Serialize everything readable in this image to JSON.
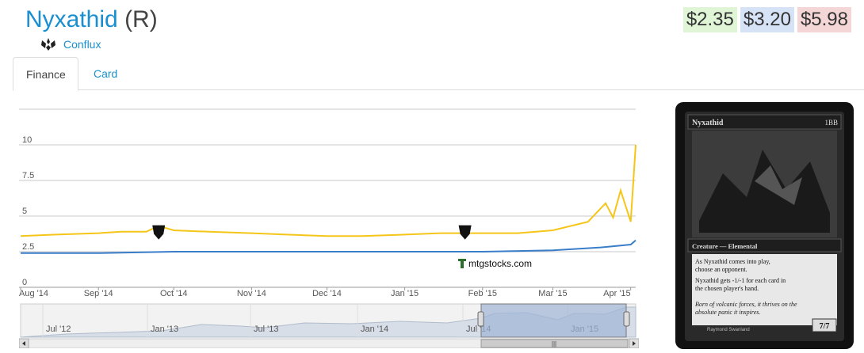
{
  "header": {
    "card_name": "Nyxathid",
    "rarity": "(R)",
    "set_name": "Conflux",
    "set_icon": "conflux-set-icon"
  },
  "prices": {
    "low": "$2.35",
    "mid": "$3.20",
    "high": "$5.98",
    "colors": {
      "low": "#dff5d6",
      "mid": "#d6e2f5",
      "high": "#f5d6d6"
    }
  },
  "tabs": [
    {
      "label": "Finance",
      "active": true
    },
    {
      "label": "Card",
      "active": false
    }
  ],
  "chart_data": {
    "type": "line",
    "x_tick_labels": [
      "Aug '14",
      "Sep '14",
      "Oct '14",
      "Nov '14",
      "Dec '14",
      "Jan '15",
      "Feb '15",
      "Mar '15",
      "Apr '15"
    ],
    "y_tick_labels": [
      "0",
      "2.5",
      "5",
      "7.5",
      "10"
    ],
    "ylim": [
      0,
      12.5
    ],
    "grid": true,
    "series": [
      {
        "color": "#f5c518",
        "x": [
          "2014-08-01",
          "2014-08-15",
          "2014-09-01",
          "2014-09-10",
          "2014-09-20",
          "2014-09-25",
          "2014-10-01",
          "2014-10-15",
          "2014-11-01",
          "2014-11-15",
          "2014-12-01",
          "2014-12-15",
          "2015-01-01",
          "2015-01-15",
          "2015-02-01",
          "2015-02-15",
          "2015-03-01",
          "2015-03-15",
          "2015-03-22",
          "2015-03-25",
          "2015-03-28",
          "2015-04-01",
          "2015-04-03"
        ],
        "values": [
          3.6,
          3.7,
          3.8,
          3.9,
          3.9,
          4.3,
          4.0,
          3.9,
          3.8,
          3.7,
          3.6,
          3.6,
          3.7,
          3.8,
          3.8,
          3.8,
          4.0,
          4.6,
          5.9,
          4.9,
          6.8,
          4.6,
          10.0
        ]
      },
      {
        "color": "#3a7dc9",
        "x": [
          "2014-08-01",
          "2014-09-01",
          "2014-10-01",
          "2014-11-01",
          "2014-12-01",
          "2015-01-01",
          "2015-02-01",
          "2015-03-01",
          "2015-03-20",
          "2015-04-01",
          "2015-04-03"
        ],
        "values": [
          2.4,
          2.4,
          2.5,
          2.5,
          2.5,
          2.5,
          2.5,
          2.6,
          2.8,
          3.0,
          3.3
        ]
      }
    ],
    "markers": [
      {
        "x": "2014-09-25",
        "icon": "khans-of-tarkir-set-icon"
      },
      {
        "x": "2015-01-25",
        "icon": "fate-reforged-set-icon"
      }
    ],
    "watermark": "mtgstocks.com",
    "navigator": {
      "tick_labels": [
        "Jul '12",
        "Jan '13",
        "Jul '13",
        "Jan '14",
        "Jul '14",
        "Jan '15"
      ],
      "scrollbar_thumb": "|||"
    }
  },
  "card_image": {
    "name": "Nyxathid",
    "mana_cost": "1BB",
    "type_line": "Creature — Elemental",
    "rules_text_1": "As Nyxathid comes into play, choose an opponent.",
    "rules_text_2": "Nyxathid gets -1/-1 for each card in the chosen player's hand.",
    "flavor_text": "Born of volcanic forces, it thrives on the absolute panic it inspires.",
    "artist": "Raymond Swanland",
    "power_toughness": "7/7"
  }
}
